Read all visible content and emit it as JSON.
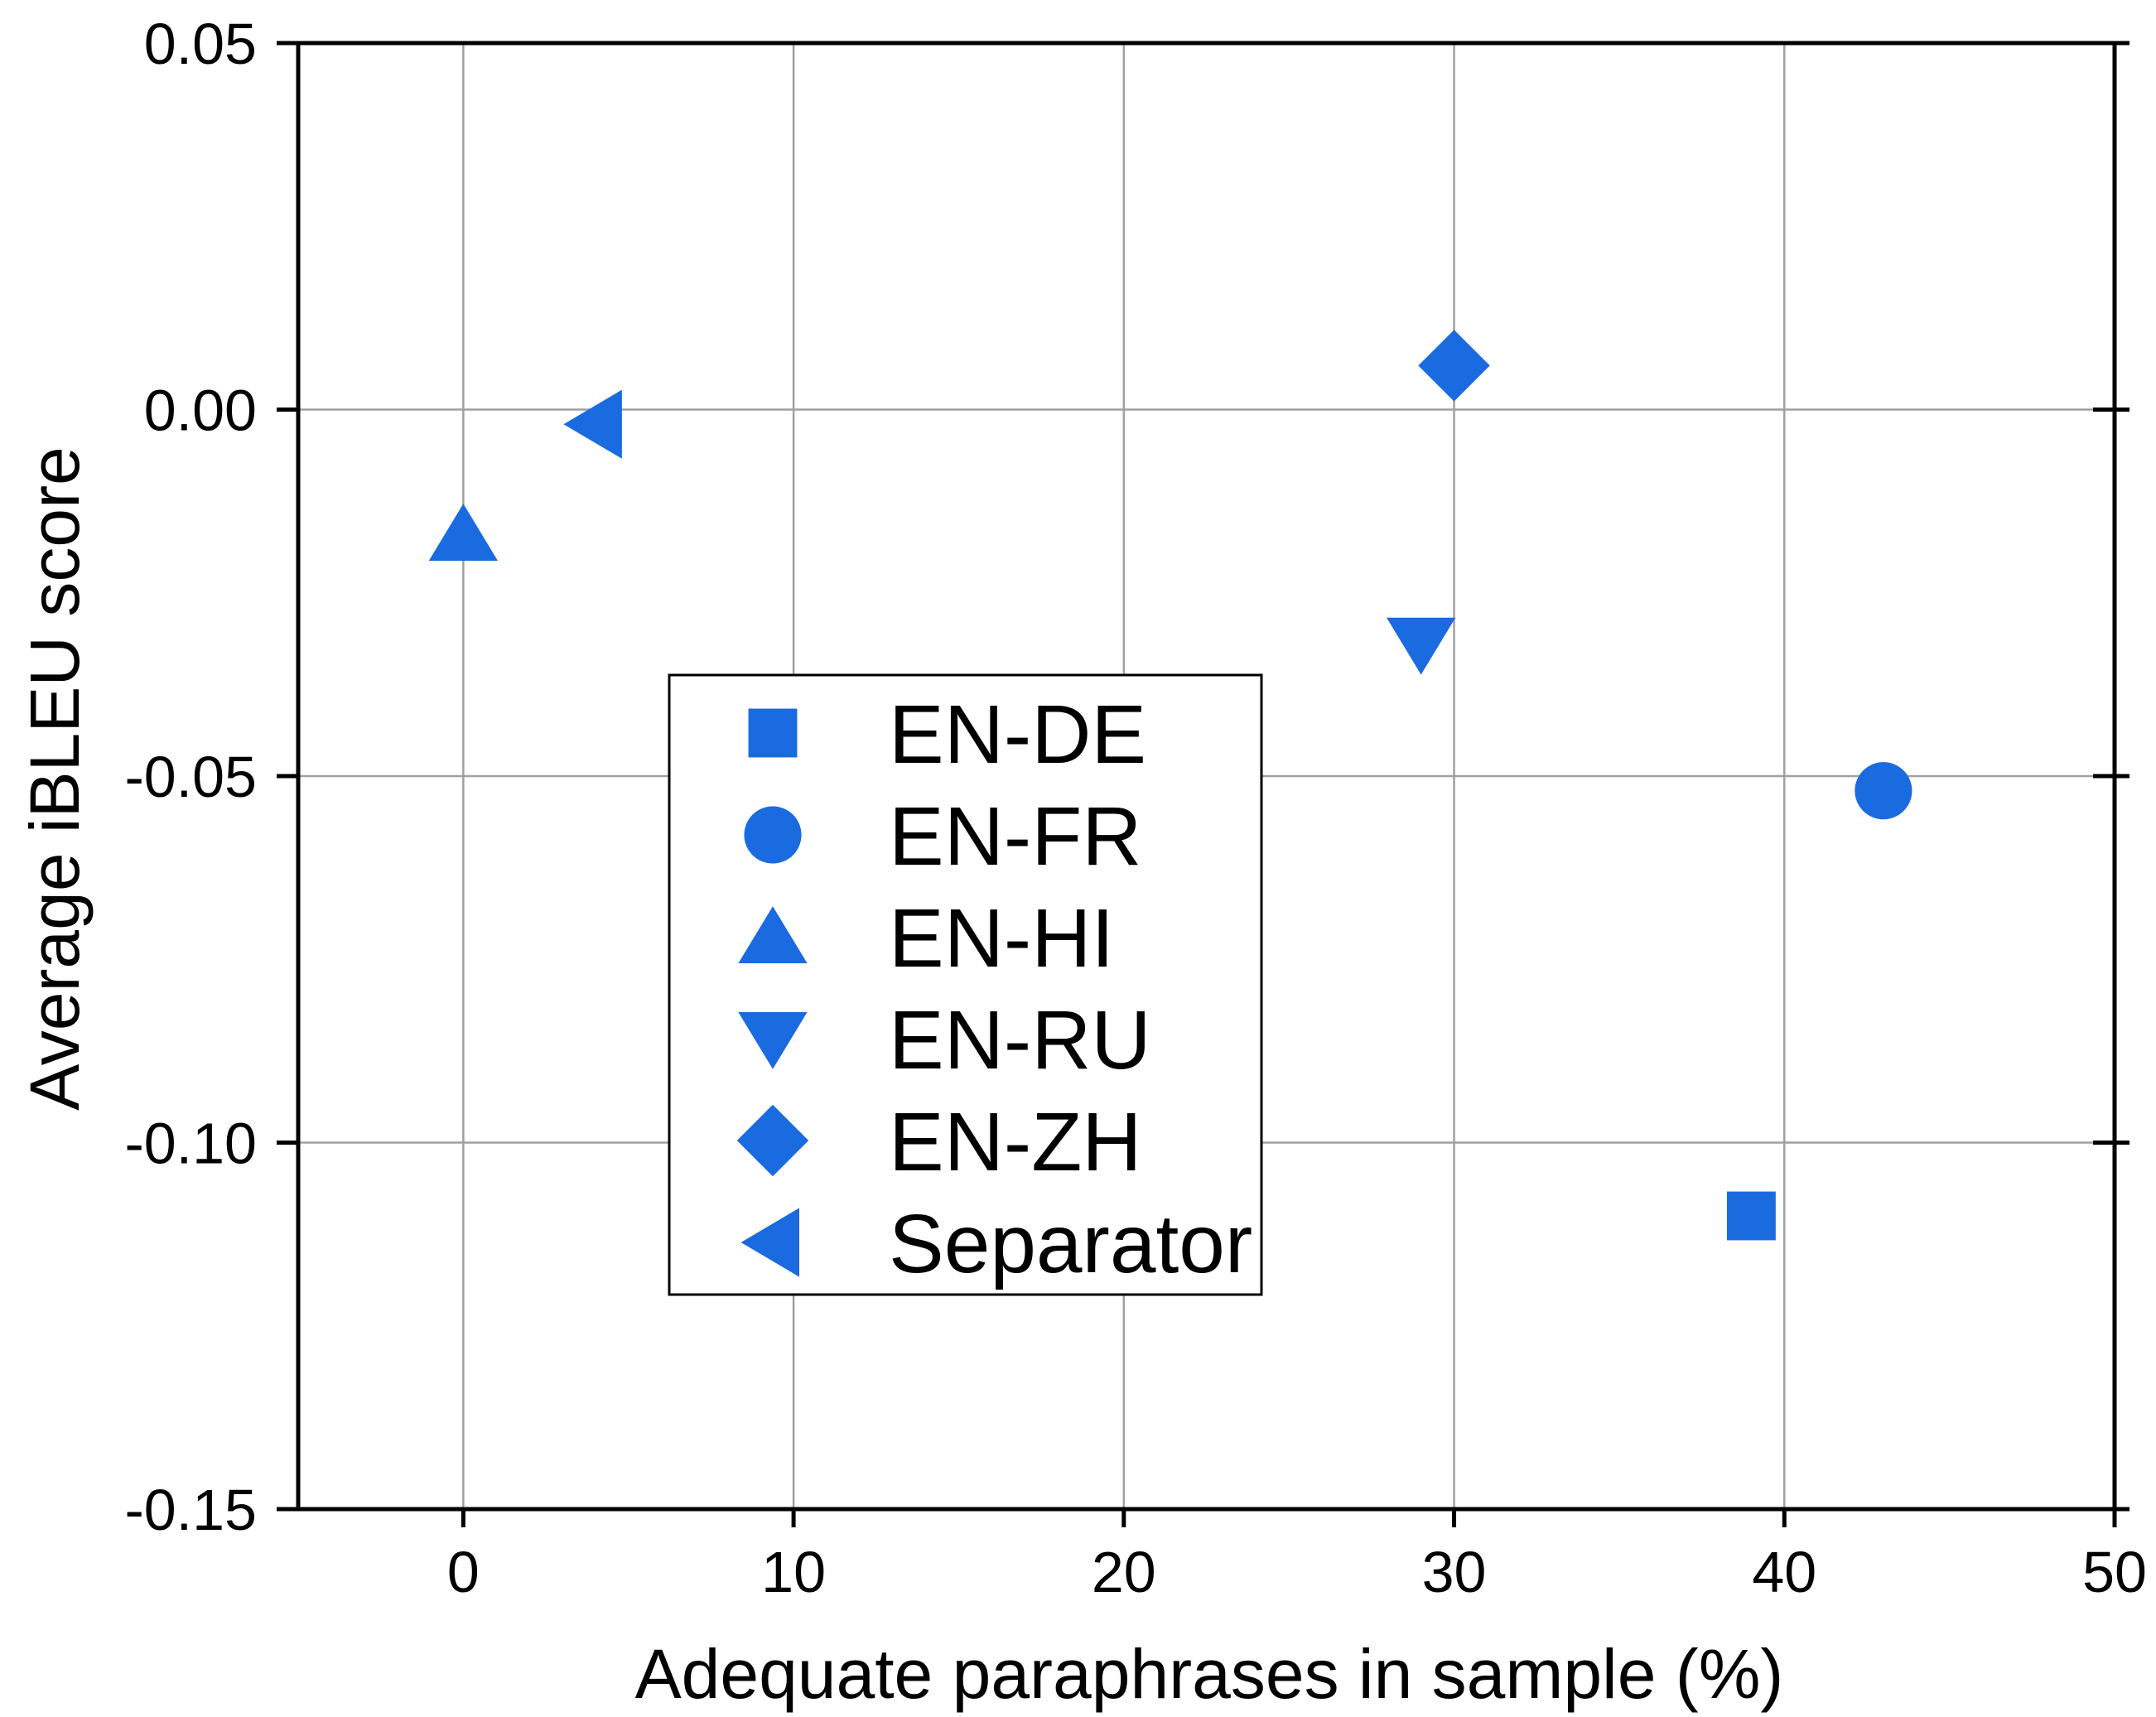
{
  "chart_data": {
    "type": "scatter",
    "title": "",
    "xlabel": "Adequate paraphrases in sample (%)",
    "ylabel": "Average iBLEU score",
    "xlim": [
      -5,
      50
    ],
    "ylim": [
      -0.15,
      0.05
    ],
    "xticks": [
      0,
      10,
      20,
      30,
      40,
      50
    ],
    "xtick_labels": [
      "0",
      "10",
      "20",
      "30",
      "40",
      "50"
    ],
    "yticks": [
      0.05,
      0.0,
      -0.05,
      -0.1,
      -0.15
    ],
    "ytick_labels": [
      "0.05",
      "0.00",
      "-0.05",
      "-0.10",
      "-0.15"
    ],
    "grid": true,
    "legend_position": "center-left",
    "marker_color": "#1a6ae0",
    "series": [
      {
        "name": "EN-DE",
        "marker": "square",
        "x": 39,
        "y": -0.11
      },
      {
        "name": "EN-FR",
        "marker": "circle",
        "x": 43,
        "y": -0.052
      },
      {
        "name": "EN-HI",
        "marker": "triangle-up",
        "x": 0,
        "y": -0.017
      },
      {
        "name": "EN-RU",
        "marker": "triangle-down",
        "x": 29,
        "y": -0.032
      },
      {
        "name": "EN-ZH",
        "marker": "diamond",
        "x": 30,
        "y": 0.006
      },
      {
        "name": "Separator",
        "marker": "triangle-left",
        "x": 4,
        "y": -0.002
      }
    ]
  }
}
